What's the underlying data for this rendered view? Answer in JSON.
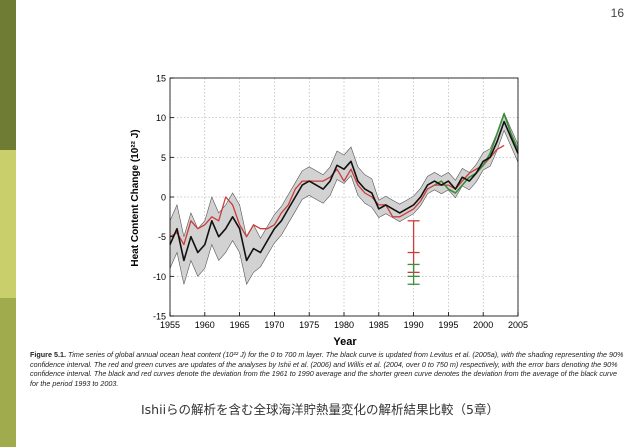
{
  "page_number": "16",
  "colors": {
    "black_curve": "#111111",
    "red_curve": "#cc3b3b",
    "green_curve": "#3b8e3b",
    "shading": "#d2d2d2"
  },
  "chart_data": {
    "type": "line",
    "xlabel": "Year",
    "ylabel": "Heat Content Change (10²² J)",
    "xlim": [
      1955,
      2005
    ],
    "ylim": [
      -15,
      15
    ],
    "xticks": [
      1955,
      1960,
      1965,
      1970,
      1975,
      1980,
      1985,
      1990,
      1995,
      2000,
      2005
    ],
    "yticks": [
      -15,
      -10,
      -5,
      0,
      5,
      10,
      15
    ],
    "grid": true,
    "series": [
      {
        "name": "Levitus et al. (2005a) updated",
        "color": "black",
        "x": [
          1955,
          1956,
          1957,
          1958,
          1959,
          1960,
          1961,
          1962,
          1963,
          1964,
          1965,
          1966,
          1967,
          1968,
          1969,
          1970,
          1971,
          1972,
          1973,
          1974,
          1975,
          1976,
          1977,
          1978,
          1979,
          1980,
          1981,
          1982,
          1983,
          1984,
          1985,
          1986,
          1987,
          1988,
          1989,
          1990,
          1991,
          1992,
          1993,
          1994,
          1995,
          1996,
          1997,
          1998,
          1999,
          2000,
          2001,
          2002,
          2003,
          2004,
          2005
        ],
        "y": [
          -6,
          -4,
          -8,
          -5,
          -7,
          -6,
          -3,
          -5,
          -4,
          -2.5,
          -4,
          -8,
          -6.5,
          -7,
          -5.5,
          -4,
          -3,
          -1.5,
          0,
          1.5,
          2,
          1.5,
          1,
          2,
          4,
          3.5,
          4.5,
          2,
          1,
          0.5,
          -1.5,
          -1,
          -1.5,
          -2,
          -1.5,
          -1,
          0,
          1.5,
          2,
          1.5,
          2,
          1,
          2.5,
          2,
          3,
          4.5,
          5,
          7,
          9.5,
          7.5,
          5.5
        ]
      },
      {
        "name": "Ishii et al. (2006)",
        "color": "red",
        "x": [
          1955,
          1956,
          1957,
          1958,
          1959,
          1960,
          1961,
          1962,
          1963,
          1964,
          1965,
          1966,
          1967,
          1968,
          1969,
          1970,
          1971,
          1972,
          1973,
          1974,
          1975,
          1976,
          1977,
          1978,
          1979,
          1980,
          1981,
          1982,
          1983,
          1984,
          1985,
          1986,
          1987,
          1988,
          1989,
          1990,
          1991,
          1992,
          1993,
          1994,
          1995,
          1996,
          1997,
          1998,
          1999,
          2000,
          2001,
          2002,
          2003
        ],
        "y": [
          -5,
          -4.5,
          -6,
          -3,
          -4,
          -3.5,
          -2.5,
          -3,
          0,
          -1,
          -3.5,
          -5,
          -3.5,
          -4,
          -4,
          -3.5,
          -2,
          -1,
          1,
          2,
          2,
          2,
          2,
          2.5,
          3.5,
          2,
          3.5,
          1.5,
          0.5,
          0,
          -1,
          -1,
          -2.5,
          -2.5,
          -2,
          -1.5,
          -0.5,
          1,
          1.5,
          1.5,
          1.5,
          1,
          2,
          3,
          3.5,
          4,
          5,
          6,
          6.5
        ]
      },
      {
        "name": "Willis et al. (2004)",
        "color": "green",
        "x": [
          1993,
          1994,
          1995,
          1996,
          1997,
          1998,
          1999,
          2000,
          2001,
          2002,
          2003,
          2004,
          2005
        ],
        "y": [
          1.5,
          2,
          1,
          0.5,
          1.5,
          2.5,
          3,
          4,
          5.5,
          8,
          10.5,
          8,
          6
        ]
      }
    ],
    "error_bars": [
      {
        "color": "red",
        "x": 1990,
        "low": -9.5,
        "high": -3,
        "center": -7
      },
      {
        "color": "green",
        "x": 1990,
        "low": -11,
        "high": -8.5,
        "center": -10
      }
    ]
  },
  "caption": {
    "label": "Figure 5.1.",
    "text": "Time series of global annual ocean heat content (10²² J) for the 0 to 700 m layer. The black curve is updated from Levitus et al. (2005a), with the shading representing the 90% confidence interval. The red and green curves are updates of the analyses by Ishii et al. (2006) and Willis et al. (2004, over 0 to 750 m) respectively, with the error bars denoting the 90% confidence interval. The black and red curves denote the deviation from the 1961 to 1990 average and the shorter green curve denotes the deviation from the average of the black curve for the period 1993 to 2003."
  },
  "subtitle": "Ishiiらの解析を含む全球海洋貯熱量変化の解析結果比較（5章）"
}
